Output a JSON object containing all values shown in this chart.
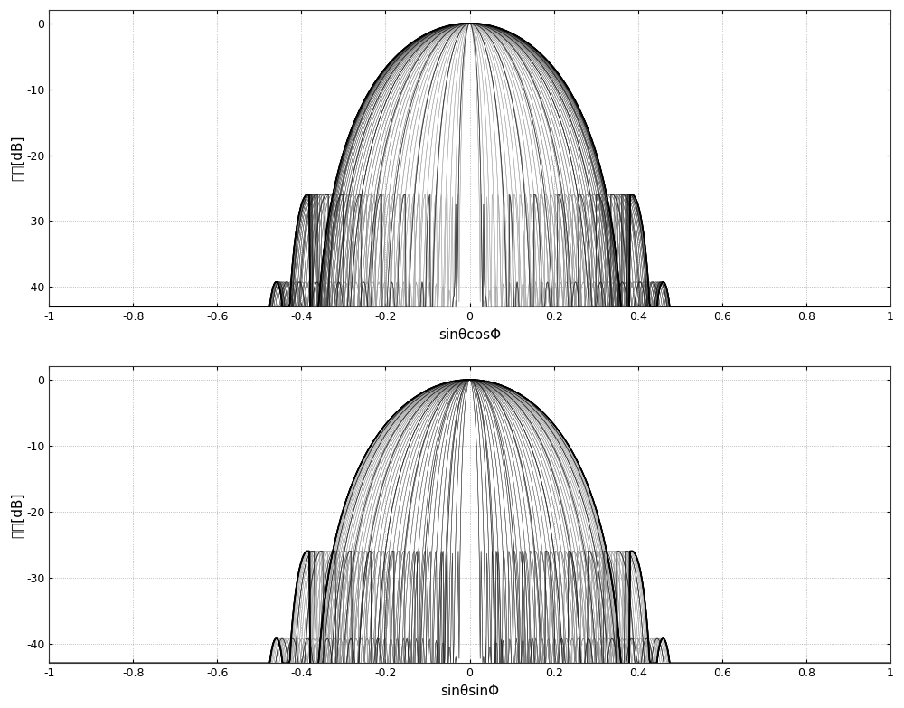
{
  "xlabel_top": "sinθcosΦ",
  "xlabel_bottom": "sinθsinΦ",
  "ylabel": "幅度[dB]",
  "xlim": [
    -1,
    1
  ],
  "ylim": [
    -43,
    2
  ],
  "yticks": [
    0,
    -10,
    -20,
    -30,
    -40
  ],
  "xticks": [
    -1,
    -0.8,
    -0.6,
    -0.4,
    -0.2,
    0,
    0.2,
    0.4,
    0.6,
    0.8,
    1
  ],
  "xtick_labels": [
    "-1",
    "-0.8",
    "-0.6",
    "-0.4",
    "-0.2",
    "0",
    "0.2",
    "0.4",
    "0.6",
    "0.8",
    "1"
  ],
  "n_phi_cuts": 90,
  "n_u_points": 1000,
  "main_beam_halfwidth": 0.38,
  "sidelobe_level_db": -29.0,
  "background_color": "#ffffff",
  "figsize": [
    10.0,
    7.83
  ],
  "dpi": 100
}
